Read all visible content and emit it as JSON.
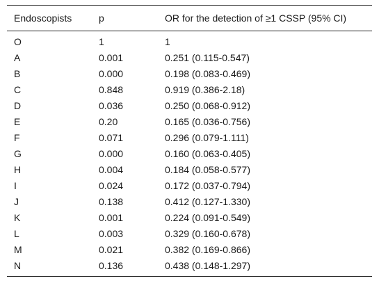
{
  "table": {
    "headers": [
      "Endoscopists",
      "p",
      "OR for the detection of ≥1 CSSP (95% CI)"
    ],
    "rows": [
      [
        "O",
        "1",
        "1"
      ],
      [
        "A",
        "0.001",
        "0.251 (0.115-0.547)"
      ],
      [
        "B",
        "0.000",
        "0.198 (0.083-0.469)"
      ],
      [
        "C",
        "0.848",
        "0.919 (0.386-2.18)"
      ],
      [
        "D",
        "0.036",
        "0.250 (0.068-0.912)"
      ],
      [
        "E",
        "0.20",
        "0.165 (0.036-0.756)"
      ],
      [
        "F",
        "0.071",
        "0.296 (0.079-1.111)"
      ],
      [
        "G",
        "0.000",
        "0.160 (0.063-0.405)"
      ],
      [
        "H",
        "0.004",
        "0.184 (0.058-0.577)"
      ],
      [
        "I",
        "0.024",
        "0.172 (0.037-0.794)"
      ],
      [
        "J",
        "0.138",
        "0.412 (0.127-1.330)"
      ],
      [
        "K",
        "0.001",
        "0.224 (0.091-0.549)"
      ],
      [
        "L",
        "0.003",
        "0.329 (0.160-0.678)"
      ],
      [
        "M",
        "0.021",
        "0.382 (0.169-0.866)"
      ],
      [
        "N",
        "0.136",
        "0.438 (0.148-1.297)"
      ]
    ]
  }
}
